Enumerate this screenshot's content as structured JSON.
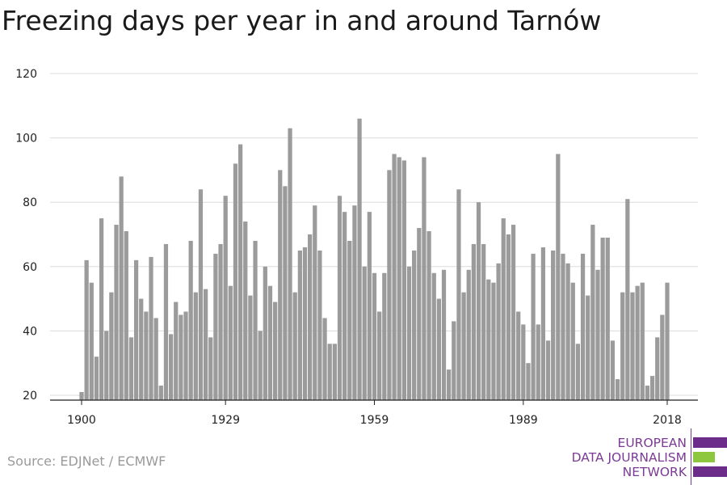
{
  "title": "Freezing days per year in and around Tarnów",
  "source": "Source: EDJNet / ECMWF",
  "logo": {
    "line1": "EUROPEAN",
    "line2": "DATA JOURNALISM",
    "line3": "NETWORK",
    "colors": {
      "text": "#7b3a96",
      "purple": "#6b2c8a",
      "green": "#8dc63f"
    }
  },
  "colors": {
    "bar": "#9b9b9b",
    "grid": "#dcdcdc",
    "axis": "#222222"
  },
  "chart_data": {
    "type": "bar",
    "title": "Freezing days per year in and around Tarnów",
    "xlabel": "",
    "ylabel": "",
    "ylim": [
      20,
      120
    ],
    "yticks": [
      20,
      40,
      60,
      80,
      100,
      120
    ],
    "xticks": [
      1900,
      1929,
      1959,
      1989,
      2018
    ],
    "grid": true,
    "x_start": 1900,
    "x_end": 2018,
    "years": [
      1900,
      1901,
      1902,
      1903,
      1904,
      1905,
      1906,
      1907,
      1908,
      1909,
      1910,
      1911,
      1912,
      1913,
      1914,
      1915,
      1916,
      1917,
      1918,
      1919,
      1920,
      1921,
      1922,
      1923,
      1924,
      1925,
      1926,
      1927,
      1928,
      1929,
      1930,
      1931,
      1932,
      1933,
      1934,
      1935,
      1936,
      1937,
      1938,
      1939,
      1940,
      1941,
      1942,
      1943,
      1944,
      1945,
      1946,
      1947,
      1948,
      1949,
      1950,
      1951,
      1952,
      1953,
      1954,
      1955,
      1956,
      1957,
      1958,
      1959,
      1960,
      1961,
      1962,
      1963,
      1964,
      1965,
      1966,
      1967,
      1968,
      1969,
      1970,
      1971,
      1972,
      1973,
      1974,
      1975,
      1976,
      1977,
      1978,
      1979,
      1980,
      1981,
      1982,
      1983,
      1984,
      1985,
      1986,
      1987,
      1988,
      1989,
      1990,
      1991,
      1992,
      1993,
      1994,
      1995,
      1996,
      1997,
      1998,
      1999,
      2000,
      2001,
      2002,
      2003,
      2004,
      2005,
      2006,
      2007,
      2008,
      2009,
      2010,
      2011,
      2012,
      2013,
      2014,
      2015,
      2016,
      2017,
      2018
    ],
    "values": [
      21,
      62,
      55,
      32,
      75,
      40,
      52,
      73,
      88,
      71,
      38,
      62,
      50,
      46,
      63,
      44,
      23,
      67,
      39,
      49,
      45,
      46,
      68,
      52,
      84,
      53,
      38,
      64,
      67,
      82,
      54,
      92,
      98,
      74,
      51,
      68,
      40,
      60,
      54,
      49,
      90,
      85,
      103,
      52,
      65,
      66,
      70,
      79,
      65,
      44,
      36,
      36,
      82,
      77,
      68,
      79,
      106,
      60,
      77,
      58,
      46,
      58,
      90,
      95,
      94,
      93,
      60,
      65,
      72,
      94,
      71,
      58,
      50,
      59,
      28,
      43,
      84,
      52,
      59,
      67,
      80,
      67,
      56,
      55,
      61,
      75,
      70,
      73,
      46,
      42,
      30,
      64,
      42,
      66,
      37,
      65,
      95,
      64,
      61,
      55,
      36,
      64,
      51,
      73,
      59,
      69,
      69,
      37,
      25,
      52,
      81,
      52,
      54,
      55,
      23,
      26,
      38,
      45,
      55
    ]
  }
}
